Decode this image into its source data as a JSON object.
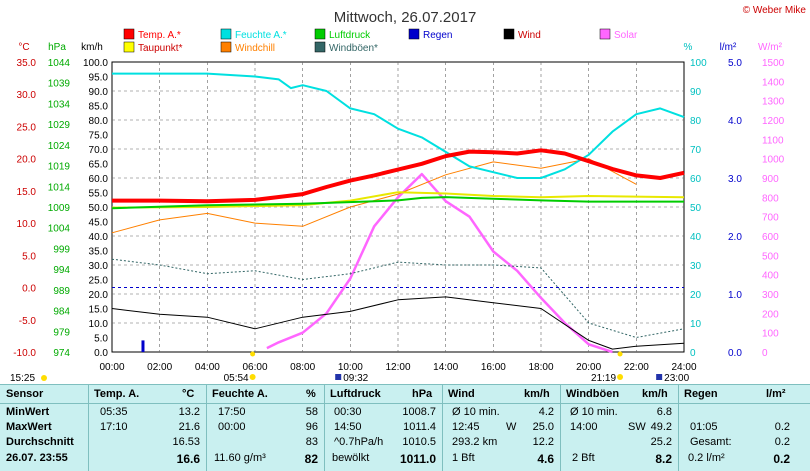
{
  "title": "Mittwoch, 26.07.2017",
  "copyright": "© Weber Mike",
  "legend": [
    {
      "label": "Temp. A.*",
      "color": "#ff0000"
    },
    {
      "label": "Feuchte A.*",
      "color": "#00e0e0"
    },
    {
      "label": "Luftdruck",
      "color": "#00cc00"
    },
    {
      "label": "Regen",
      "color": "#0000cc"
    },
    {
      "label": "Wind",
      "color": "#000000"
    },
    {
      "label": "Solar",
      "color": "#ff66ff"
    },
    {
      "label": "Taupunkt*",
      "color": "#ffff00"
    },
    {
      "label": "Windchill",
      "color": "#ff8000"
    },
    {
      "label": "Windböen*",
      "color": "#336666"
    }
  ],
  "axis_units": {
    "temp": "°C",
    "press": "hPa",
    "wind": "km/h",
    "hum": "%",
    "rain": "l/m²",
    "solar": "W/m²"
  },
  "sun_marks": {
    "sunrise": "05:54",
    "sunset": "21:19",
    "moonrise": "09:32",
    "moonset": "23:00",
    "start": "15:25"
  },
  "chart_data": {
    "type": "line",
    "x_range": [
      "00:00",
      "24:00"
    ],
    "x_ticks": [
      "00:00",
      "02:00",
      "04:00",
      "06:00",
      "08:00",
      "10:00",
      "12:00",
      "14:00",
      "16:00",
      "18:00",
      "20:00",
      "22:00",
      "24:00"
    ],
    "temp_ticks": [
      "35.0",
      "30.0",
      "25.0",
      "20.0",
      "15.0",
      "10.0",
      "5.0",
      "0.0",
      "-5.0",
      "-10.0"
    ],
    "press_ticks": [
      "1044",
      "1039",
      "1034",
      "1029",
      "1024",
      "1019",
      "1014",
      "1009",
      "1004",
      "999",
      "994",
      "989",
      "984",
      "979",
      "974"
    ],
    "wind_ticks": [
      "100.0",
      "95.0",
      "90.0",
      "85.0",
      "80.0",
      "75.0",
      "70.0",
      "65.0",
      "60.0",
      "55.0",
      "50.0",
      "45.0",
      "40.0",
      "35.0",
      "30.0",
      "25.0",
      "20.0",
      "15.0",
      "10.0",
      "5.0",
      "0.0"
    ],
    "hum_ticks": [
      "100",
      "90",
      "80",
      "70",
      "60",
      "50",
      "40",
      "30",
      "20",
      "10",
      "0"
    ],
    "rain_ticks": [
      "5.0",
      "4.0",
      "3.0",
      "2.0",
      "1.0",
      "0.0"
    ],
    "solar_ticks": [
      "1500",
      "1400",
      "1300",
      "1200",
      "1100",
      "1000",
      "900",
      "800",
      "700",
      "600",
      "500",
      "400",
      "300",
      "200",
      "100",
      "0"
    ],
    "series": [
      {
        "name": "Temp. A.*",
        "unit": "°C",
        "x": [
          0,
          2,
          4,
          6,
          8,
          9,
          10,
          11,
          12,
          13,
          14,
          15,
          16,
          17,
          18,
          19,
          20,
          21,
          22,
          23,
          24
        ],
        "y": [
          13.5,
          13.5,
          13.4,
          13.6,
          14.5,
          15.6,
          16.6,
          17.4,
          18.3,
          19.2,
          20.4,
          21.1,
          21.0,
          20.8,
          21.3,
          20.8,
          19.6,
          18.4,
          17.4,
          17.0,
          17.8
        ]
      },
      {
        "name": "Feuchte A.*",
        "unit": "%",
        "x": [
          0,
          2,
          4,
          6,
          7,
          7.5,
          8,
          9,
          10,
          11,
          12,
          13,
          14,
          15,
          16,
          17,
          18,
          19,
          20,
          21,
          22,
          23,
          24
        ],
        "y": [
          96,
          96,
          96,
          95,
          94,
          91,
          92,
          90,
          84,
          82,
          77,
          74,
          69,
          64,
          62,
          60,
          60,
          63,
          68,
          76,
          82,
          84,
          81
        ]
      },
      {
        "name": "Luftdruck",
        "unit": "hPa",
        "x": [
          0,
          4,
          8,
          12,
          13,
          14,
          16,
          18,
          20,
          22,
          24
        ],
        "y": [
          1008.7,
          1009.4,
          1009.8,
          1010.6,
          1011.2,
          1011.4,
          1011.0,
          1010.6,
          1010.3,
          1010.3,
          1010.3
        ]
      },
      {
        "name": "Taupunkt*",
        "unit": "°C",
        "x": [
          0,
          4,
          8,
          10,
          12,
          14,
          16,
          18,
          20,
          24
        ],
        "y": [
          12.4,
          12.5,
          12.8,
          13.5,
          14.8,
          14.6,
          14.2,
          14.0,
          14.2,
          14.0
        ]
      },
      {
        "name": "Wind",
        "unit": "km/h",
        "x": [
          0,
          2,
          4,
          6,
          8,
          10,
          12,
          14,
          16,
          18,
          20,
          21,
          22,
          24
        ],
        "y": [
          15,
          13,
          12,
          8,
          12,
          14,
          18,
          19,
          17,
          15,
          4,
          1,
          2,
          3
        ]
      },
      {
        "name": "Windchill",
        "unit": "°C",
        "x": [
          0,
          2,
          4,
          6,
          8,
          10,
          12,
          14,
          16,
          18,
          20,
          22
        ],
        "y": [
          8.5,
          10.5,
          11.5,
          10.0,
          9.5,
          12.5,
          14.5,
          17.5,
          19.5,
          18.5,
          20.0,
          16.0
        ]
      },
      {
        "name": "Windböen*",
        "unit": "km/h",
        "x": [
          0,
          2,
          4,
          6,
          8,
          10,
          12,
          14,
          16,
          18,
          20,
          22,
          24
        ],
        "y": [
          32,
          30,
          27,
          28,
          25,
          27,
          31,
          30,
          30,
          29,
          10,
          5,
          8
        ]
      },
      {
        "name": "Solar",
        "unit": "W/m²",
        "x": [
          6.5,
          7,
          8,
          9,
          10,
          11,
          12,
          13,
          14,
          15,
          16,
          17,
          18,
          19,
          20,
          21
        ],
        "y": [
          20,
          50,
          100,
          200,
          380,
          650,
          800,
          920,
          780,
          700,
          520,
          420,
          280,
          150,
          40,
          0
        ]
      },
      {
        "name": "Regen",
        "unit": "l/m²",
        "x": [
          1.3
        ],
        "y": [
          0.2
        ]
      }
    ]
  },
  "table": {
    "headers": {
      "sensor": "Sensor",
      "temp": "Temp. A.",
      "temp_u": "°C",
      "hum": "Feuchte A.",
      "hum_u": "%",
      "press": "Luftdruck",
      "press_u": "hPa",
      "wind": "Wind",
      "wind_u": "km/h",
      "gust": "Windböen",
      "gust_u": "km/h",
      "rain": "Regen",
      "rain_u": "l/m²"
    },
    "rows": [
      {
        "label": "MinWert",
        "t_time": "05:35",
        "t_val": "13.2",
        "h_time": "17:50",
        "h_val": "58",
        "p_time": "00:30",
        "p_val": "1008.7",
        "w_time": "Ø 10 min.",
        "w_val": "4.2",
        "g_time": "Ø 10 min.",
        "g_val": "6.8",
        "r_time": "",
        "r_val": ""
      },
      {
        "label": "MaxWert",
        "t_time": "17:10",
        "t_val": "21.6",
        "h_time": "00:00",
        "h_val": "96",
        "p_time": "14:50",
        "p_val": "1011.4",
        "w_time": "12:45",
        "w_dir": "W",
        "w_val": "25.0",
        "g_time": "14:00",
        "g_dir": "SW",
        "g_val": "49.2",
        "r_time": "01:05",
        "r_val": "0.2"
      },
      {
        "label": "Durchschnitt",
        "t_time": "",
        "t_val": "16.53",
        "h_time": "",
        "h_val": "83",
        "p_time": "^0.7hPa/h",
        "p_val": "1010.5",
        "w_time": "293.2 km",
        "w_val": "12.2",
        "g_time": "",
        "g_val": "25.2",
        "r_time": "Gesamt:",
        "r_val": "0.2"
      }
    ],
    "current": {
      "label": "26.07. 23:55",
      "t_val": "16.6",
      "h_extra": "11.60 g/m³",
      "h_val": "82",
      "p_text": "bewölkt",
      "p_val": "1011.0",
      "w_bft": "1 Bft",
      "w_val": "4.6",
      "g_bft": "2 Bft",
      "g_val": "8.2",
      "r_text": "0.2 l/m²",
      "r_val": "0.2"
    }
  }
}
